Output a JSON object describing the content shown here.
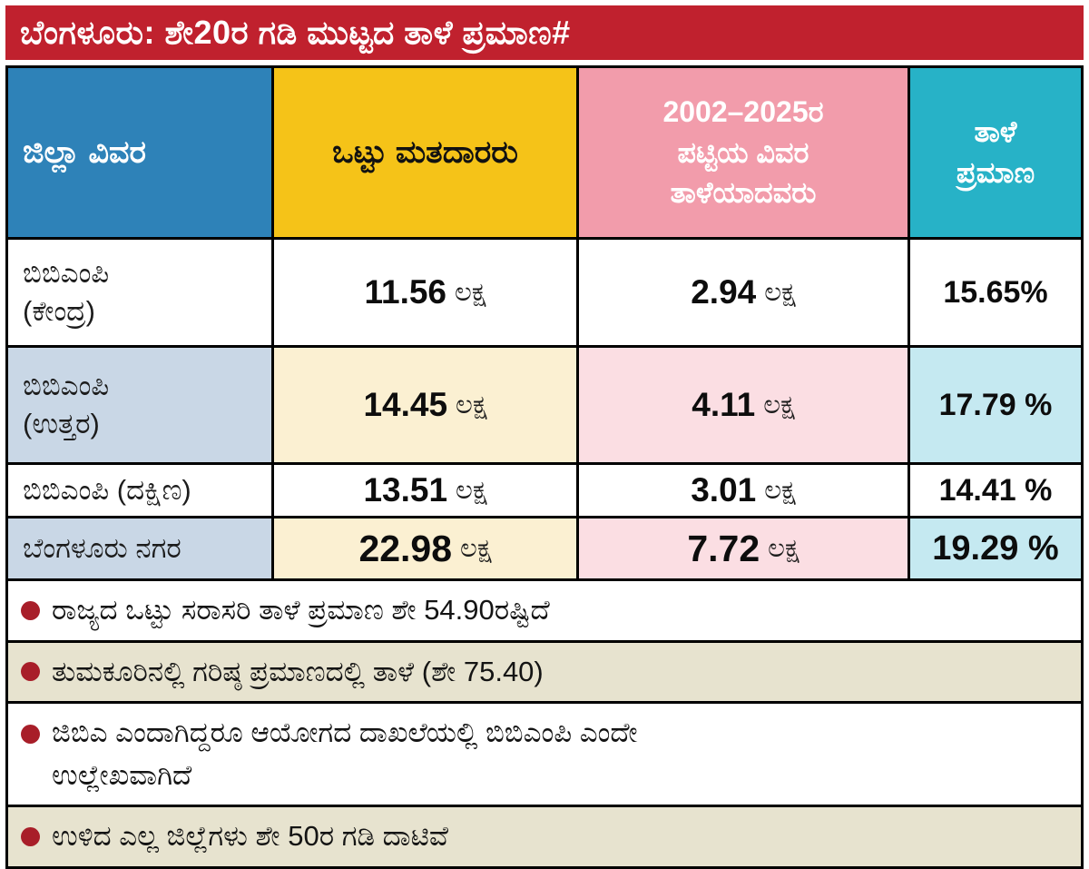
{
  "title_bar": {
    "text": "ಬೆಂಗಳೂರು: ಶೇ20ರ ಗಡಿ ಮುಟ್ಟದ ತಾಳೆ ಪ್ರಮಾಣ#"
  },
  "table": {
    "headers": {
      "district": "ಜಿಲ್ಲಾ ವಿವರ",
      "total_voters": "ಒಟ್ಟು ಮತದಾರರು",
      "matched": "2002–2025ರ\nಪಟ್ಟಿಯ ವಿವರ\nತಾಳೆಯಾದವರು",
      "match_ratio": "ತಾಳೆ\nಪ್ರಮಾಣ"
    },
    "rows": [
      {
        "district": "ಬಿಬಿಎಂಪಿ\n(ಕೇಂದ್ರ)",
        "voters_value": "11.56",
        "voters_unit": "ಲಕ್ಷ",
        "matched_value": "2.94",
        "matched_unit": "ಲಕ್ಷ",
        "pct": "15.65%"
      },
      {
        "district": "ಬಿಬಿಎಂಪಿ\n(ಉತ್ತರ)",
        "voters_value": "14.45",
        "voters_unit": "ಲಕ್ಷ",
        "matched_value": "4.11",
        "matched_unit": "ಲಕ್ಷ",
        "pct": "17.79 %"
      },
      {
        "district": "ಬಿಬಿಎಂಪಿ (ದಕ್ಷಿಣ)",
        "voters_value": "13.51",
        "voters_unit": "ಲಕ್ಷ",
        "matched_value": "3.01",
        "matched_unit": "ಲಕ್ಷ",
        "pct": "14.41 %"
      },
      {
        "district": "ಬೆಂಗಳೂರು ನಗರ",
        "voters_value": "22.98",
        "voters_unit": "ಲಕ್ಷ",
        "matched_value": "7.72",
        "matched_unit": "ಲಕ್ಷ",
        "pct": "19.29 %"
      }
    ]
  },
  "notes": [
    "ರಾಜ್ಯದ ಒಟ್ಟು ಸರಾಸರಿ ತಾಳೆ ಪ್ರಮಾಣ ಶೇ 54.90ರಷ್ಟಿದೆ",
    "ತುಮಕೂರಿನಲ್ಲಿ ಗರಿಷ್ಠ ಪ್ರಮಾಣದಲ್ಲಿ ತಾಳೆ (ಶೇ 75.40)",
    "ಜಿಬಿಎ ಎಂದಾಗಿದ್ದರೂ ಆಯೋಗದ ದಾಖಲೆಯಲ್ಲಿ ಬಿಬಿಎಂಪಿ ಎಂದೇ\nಉಲ್ಲೇಖವಾಗಿದೆ",
    "ಉಳಿದ ಎಲ್ಲ ಜಿಲ್ಲೆಗಳು ಶೇ 50ರ ಗಡಿ ದಾಟಿವೆ"
  ],
  "colors": {
    "title_bg": "#c0212e",
    "header_district_bg": "#2e82b8",
    "header_voters_bg": "#f5c318",
    "header_matched_bg": "#f29cab",
    "header_pct_bg": "#27b2c7",
    "alt_district_bg": "#c9d7e6",
    "alt_voters_bg": "#fbf0d2",
    "alt_matched_bg": "#fbdee3",
    "alt_pct_bg": "#c5e9f1",
    "note_alt_bg": "#e7e3cf",
    "bullet": "#a81e29"
  },
  "chart_data": {
    "type": "table",
    "title": "ಬೆಂಗಳೂರು: ಶೇ20ರ ಗಡಿ ಮುಟ್ಟದ ತಾಳೆ ಪ್ರಮಾಣ#",
    "columns": [
      "ಜಿಲ್ಲಾ ವಿವರ",
      "ಒಟ್ಟು ಮತದಾರರು",
      "2002–2025ರ ಪಟ್ಟಿಯ ವಿವರ ತಾಳೆಯಾದವರು",
      "ತಾಳೆ ಪ್ರಮಾಣ"
    ],
    "unit_label": "ಲಕ್ಷ",
    "rows": [
      {
        "district": "ಬಿಬಿಎಂಪಿ (ಕೇಂದ್ರ)",
        "total_voters_lakh": 11.56,
        "matched_2002_2025_lakh": 2.94,
        "match_percent": 15.65
      },
      {
        "district": "ಬಿಬಿಎಂಪಿ (ಉತ್ತರ)",
        "total_voters_lakh": 14.45,
        "matched_2002_2025_lakh": 4.11,
        "match_percent": 17.79
      },
      {
        "district": "ಬಿಬಿಎಂಪಿ (ದಕ್ಷಿಣ)",
        "total_voters_lakh": 13.51,
        "matched_2002_2025_lakh": 3.01,
        "match_percent": 14.41
      },
      {
        "district": "ಬೆಂಗಳೂರು ನಗರ",
        "total_voters_lakh": 22.98,
        "matched_2002_2025_lakh": 7.72,
        "match_percent": 19.29
      }
    ],
    "notes": [
      "ರಾಜ್ಯದ ಒಟ್ಟು ಸರಾಸರಿ ತಾಳೆ ಪ್ರಮಾಣ ಶೇ 54.90ರಷ್ಟಿದೆ",
      "ತುಮಕೂರಿನಲ್ಲಿ ಗರಿಷ್ಠ ಪ್ರಮಾಣದಲ್ಲಿ ತಾಳೆ (ಶೇ 75.40)",
      "ಜಿಬಿಎ ಎಂದಾಗಿದ್ದರೂ ಆಯೋಗದ ದಾಖಲೆಯಲ್ಲಿ ಬಿಬಿಎಂಪಿ ಎಂದೇ ಉಲ್ಲೇಖವಾಗಿದೆ",
      "ಉಳಿದ ಎಲ್ಲ ಜಿಲ್ಲೆಗಳು ಶೇ 50ರ ಗಡಿ ದಾಟಿವೆ"
    ]
  }
}
